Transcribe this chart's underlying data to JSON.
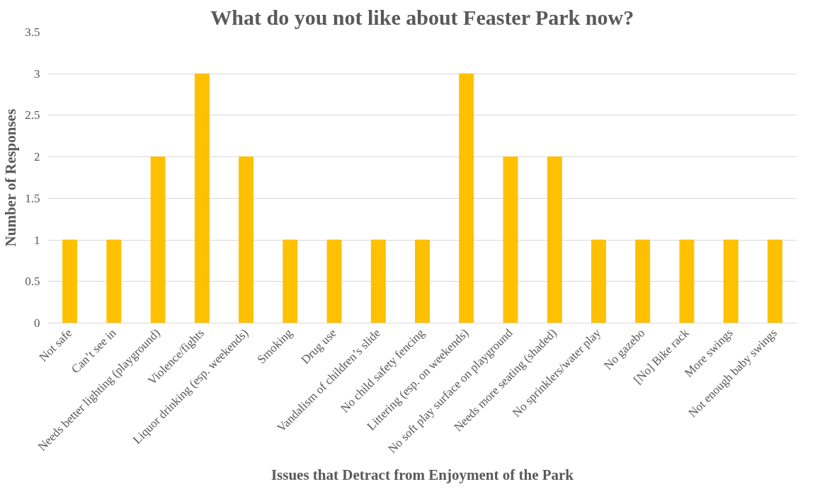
{
  "chart_data": {
    "type": "bar",
    "title": "What do you not like about Feaster Park now?",
    "xlabel": "Issues that Detract from Enjoyment of the Park",
    "ylabel": "Number of Responses",
    "categories": [
      "Not safe",
      "Can’t see in",
      "Needs better lighting (playground)",
      "Violence/fights",
      "Liquor drinking (esp. weekends)",
      "Smoking",
      "Drug use",
      "Vandalism of children’s slide",
      "No child safety fencing",
      "Littering (esp. on weekends)",
      "No soft play surface on playground",
      "Needs more seating (shaded)",
      "No sprinklers/water play",
      "No gazebo",
      "[No] Bike rack",
      "More swings",
      "Not enough baby swings"
    ],
    "values": [
      1,
      1,
      2,
      3,
      2,
      1,
      1,
      1,
      1,
      3,
      2,
      2,
      1,
      1,
      1,
      1,
      1
    ],
    "color": "#ffc000",
    "ylim": [
      0,
      3.5
    ],
    "yticks": [
      0,
      0.5,
      1,
      1.5,
      2,
      2.5,
      3,
      3.5
    ],
    "grid": "y"
  }
}
